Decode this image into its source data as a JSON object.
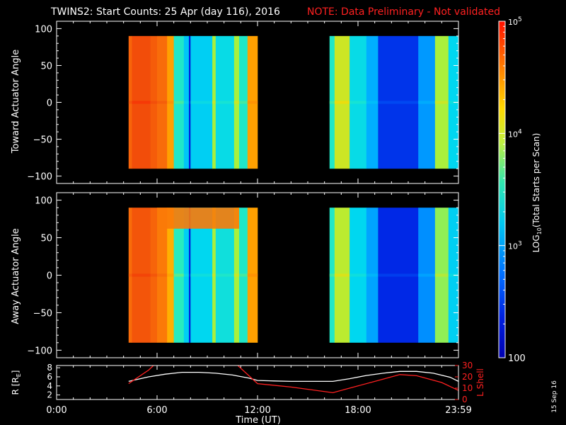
{
  "header": {
    "title": "TWINS2: Start Counts: 25 Apr (day 116), 2016",
    "note": "NOTE: Data Preliminary - Not validated",
    "date_stamp": "15 Sep 16"
  },
  "colors": {
    "background": "#000000",
    "note": "#ff2020",
    "axis": "#ffffff",
    "r_line": "#ffffff",
    "l_line": "#ff2020"
  },
  "chart_data": [
    {
      "type": "heatmap",
      "name": "toward-panel",
      "title": "",
      "ylabel": "Toward Actuator Angle",
      "xlim": [
        0,
        24
      ],
      "ylim": [
        -110,
        110
      ],
      "yticks": [
        100,
        50,
        0,
        -50,
        -100
      ],
      "ytick_labels": [
        "100",
        "50",
        "0",
        "−50",
        "−100"
      ],
      "data_segments": [
        [
          4.3,
          12.0
        ],
        [
          16.3,
          24.0
        ]
      ],
      "data_angle_range": [
        -90,
        90
      ],
      "columns": [
        {
          "t0": 4.3,
          "t1": 4.5,
          "log": 4.6
        },
        {
          "t0": 4.5,
          "t1": 5.6,
          "log": 4.75
        },
        {
          "t0": 5.6,
          "t1": 6.0,
          "log": 4.65
        },
        {
          "t0": 6.0,
          "t1": 6.6,
          "log": 4.55
        },
        {
          "t0": 6.6,
          "t1": 7.0,
          "log": 4.2
        },
        {
          "t0": 7.0,
          "t1": 7.6,
          "log": 3.3
        },
        {
          "t0": 7.6,
          "t1": 7.9,
          "log": 3.0
        },
        {
          "t0": 7.9,
          "t1": 8.0,
          "log": 2.2
        },
        {
          "t0": 8.0,
          "t1": 9.3,
          "log": 3.05
        },
        {
          "t0": 9.3,
          "t1": 9.5,
          "log": 3.6
        },
        {
          "t0": 9.5,
          "t1": 10.6,
          "log": 3.15
        },
        {
          "t0": 10.6,
          "t1": 10.9,
          "log": 3.6
        },
        {
          "t0": 10.9,
          "t1": 11.4,
          "log": 3.3
        },
        {
          "t0": 11.4,
          "t1": 12.0,
          "log": 4.2
        },
        {
          "t0": 16.3,
          "t1": 16.6,
          "log": 3.3
        },
        {
          "t0": 16.6,
          "t1": 17.5,
          "log": 3.7
        },
        {
          "t0": 17.5,
          "t1": 18.5,
          "log": 3.15
        },
        {
          "t0": 18.5,
          "t1": 19.2,
          "log": 2.85
        },
        {
          "t0": 19.2,
          "t1": 21.6,
          "log": 2.3
        },
        {
          "t0": 21.6,
          "t1": 22.6,
          "log": 2.75
        },
        {
          "t0": 22.6,
          "t1": 23.4,
          "log": 3.6
        },
        {
          "t0": 23.4,
          "t1": 24.0,
          "log": 3.1
        }
      ]
    },
    {
      "type": "heatmap",
      "name": "away-panel",
      "title": "",
      "ylabel": "Away Actuator Angle",
      "xlim": [
        0,
        24
      ],
      "ylim": [
        -110,
        110
      ],
      "yticks": [
        100,
        50,
        0,
        -50,
        -100
      ],
      "ytick_labels": [
        "100",
        "50",
        "0",
        "−50",
        "−100"
      ],
      "data_segments": [
        [
          4.3,
          12.0
        ],
        [
          16.3,
          24.0
        ]
      ],
      "data_angle_range": [
        -90,
        90
      ],
      "columns": [
        {
          "t0": 4.3,
          "t1": 4.5,
          "log": 4.55
        },
        {
          "t0": 4.5,
          "t1": 5.6,
          "log": 4.7
        },
        {
          "t0": 5.6,
          "t1": 6.0,
          "log": 4.6
        },
        {
          "t0": 6.0,
          "t1": 6.6,
          "log": 4.45
        },
        {
          "t0": 6.6,
          "t1": 7.0,
          "log": 4.1
        },
        {
          "t0": 7.0,
          "t1": 7.6,
          "log": 3.35
        },
        {
          "t0": 7.6,
          "t1": 7.9,
          "log": 3.05
        },
        {
          "t0": 7.9,
          "t1": 8.0,
          "log": 2.2
        },
        {
          "t0": 8.0,
          "t1": 9.3,
          "log": 3.1
        },
        {
          "t0": 9.3,
          "t1": 9.5,
          "log": 3.6
        },
        {
          "t0": 9.5,
          "t1": 10.6,
          "log": 3.2
        },
        {
          "t0": 10.6,
          "t1": 10.9,
          "log": 3.6
        },
        {
          "t0": 10.9,
          "t1": 11.4,
          "log": 3.3
        },
        {
          "t0": 11.4,
          "t1": 12.0,
          "log": 4.2
        },
        {
          "t0": 16.3,
          "t1": 16.6,
          "log": 3.3
        },
        {
          "t0": 16.6,
          "t1": 17.5,
          "log": 3.65
        },
        {
          "t0": 17.5,
          "t1": 18.5,
          "log": 3.1
        },
        {
          "t0": 18.5,
          "t1": 19.2,
          "log": 2.8
        },
        {
          "t0": 19.2,
          "t1": 21.6,
          "log": 2.25
        },
        {
          "t0": 21.6,
          "t1": 22.6,
          "log": 2.7
        },
        {
          "t0": 22.6,
          "t1": 23.4,
          "log": 3.55
        },
        {
          "t0": 23.4,
          "t1": 24.0,
          "log": 3.05
        }
      ],
      "top_band": {
        "angle_min": 62,
        "angle_max": 90,
        "t0": 6.0,
        "t1": 10.9,
        "log": 4.45
      }
    },
    {
      "type": "line",
      "name": "orbit-panel",
      "title": "",
      "xlabel": "Time (UT)",
      "xlim": [
        0,
        24
      ],
      "xticks": [
        0,
        6,
        12,
        18,
        24
      ],
      "xtick_labels": [
        "0:00",
        "6:00",
        "12:00",
        "18:00",
        "23:59"
      ],
      "ylabel": "R [R",
      "ylabel_sub": "E",
      "ylabel_close": "]",
      "ylim": [
        1,
        8.5
      ],
      "yticks": [
        2,
        4,
        6,
        8
      ],
      "ytick_labels": [
        "2",
        "4",
        "6",
        "8"
      ],
      "y2label": "L Shell",
      "y2lim": [
        0,
        30
      ],
      "y2ticks": [
        0,
        10,
        20,
        30
      ],
      "y2tick_labels": [
        "0",
        "10",
        "20",
        "30"
      ],
      "series": [
        {
          "axis": "left",
          "color": "#ffffff",
          "x": [
            4.3,
            5.5,
            6.5,
            7.5,
            8.5,
            9.5,
            10.5,
            11.5,
            12.0,
            13.0,
            14.0,
            15.0,
            16.0,
            16.5,
            17.5,
            18.5,
            19.5,
            20.5,
            21.5,
            22.5,
            23.5,
            24.0
          ],
          "y": [
            5.0,
            6.0,
            6.6,
            7.0,
            7.0,
            6.8,
            6.4,
            5.7,
            5.2,
            5.1,
            5.0,
            5.0,
            5.0,
            5.0,
            5.6,
            6.3,
            6.8,
            7.2,
            7.2,
            6.8,
            5.9,
            5.0
          ]
        },
        {
          "axis": "right",
          "color": "#ff2020",
          "x": [
            4.3,
            5.5,
            6.0,
            10.6,
            12.0,
            14.0,
            16.5,
            18.0,
            19.5,
            20.5,
            21.5,
            23.0,
            24.0
          ],
          "y": [
            14,
            26,
            33,
            33,
            14,
            11,
            6,
            12,
            18,
            22,
            21,
            15,
            8
          ]
        }
      ]
    },
    {
      "type": "colorbar",
      "name": "colorbar",
      "scale": "log",
      "range": [
        100,
        100000
      ],
      "ticks": [
        {
          "log": 5,
          "base": "10",
          "exp": "5"
        },
        {
          "log": 4,
          "base": "10",
          "exp": "4"
        },
        {
          "log": 3,
          "base": "10",
          "exp": "3"
        },
        {
          "log": 2,
          "base": "100",
          "exp": ""
        }
      ],
      "label_prefix": "LOG",
      "label_sub": "10",
      "label_suffix": "(Total Starts per Scan)"
    }
  ]
}
